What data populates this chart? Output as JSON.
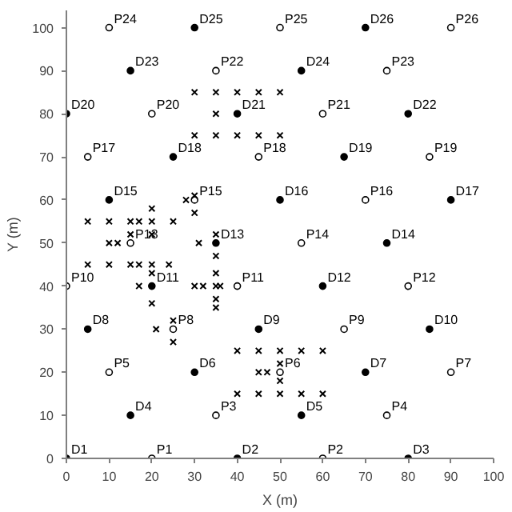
{
  "chart_data": {
    "type": "scatter",
    "xlabel": "X (m)",
    "ylabel": "Y (m)",
    "xlim": [
      0,
      100
    ],
    "ylim": [
      0,
      104
    ],
    "xticks": [
      0,
      10,
      20,
      30,
      40,
      50,
      60,
      70,
      80,
      90,
      100
    ],
    "yticks": [
      0,
      10,
      20,
      30,
      40,
      50,
      60,
      70,
      80,
      90,
      100
    ],
    "grid": false,
    "series": [
      {
        "color": "#000000",
        "marker": "circle",
        "x": [
          0,
          40,
          80,
          15,
          55,
          30,
          70,
          5,
          45,
          85,
          20,
          60,
          35,
          75,
          10,
          50,
          90,
          25,
          65,
          0,
          40,
          80,
          15,
          55,
          30,
          70
        ],
        "values": [
          0,
          0,
          0,
          10,
          10,
          20,
          20,
          30,
          30,
          30,
          40,
          40,
          50,
          50,
          60,
          60,
          60,
          70,
          70,
          80,
          80,
          80,
          90,
          90,
          100,
          100
        ]
      },
      {
        "color": "#ffffff",
        "marker": "circle",
        "x": [
          20,
          60,
          35,
          75,
          10,
          50,
          90,
          25,
          65,
          0,
          40,
          80,
          15,
          55,
          30,
          70,
          5,
          45,
          85,
          20,
          60,
          35,
          75,
          10,
          50,
          90
        ],
        "values": [
          0,
          0,
          10,
          10,
          20,
          20,
          20,
          30,
          30,
          40,
          40,
          40,
          50,
          50,
          60,
          60,
          70,
          70,
          70,
          80,
          80,
          90,
          90,
          100,
          100,
          100
        ]
      },
      {
        "color": "#000000",
        "marker": "cross",
        "x": [
          30,
          35,
          40,
          45,
          50,
          35,
          30,
          35,
          40,
          45,
          50,
          5,
          10,
          15,
          17,
          20,
          25,
          20,
          20,
          10,
          12,
          31,
          15,
          35,
          35,
          5,
          10,
          15,
          17,
          20,
          24,
          17,
          20,
          20,
          30,
          32,
          35,
          36,
          35,
          35,
          35,
          28,
          30,
          30,
          21,
          25,
          25,
          40,
          45,
          50,
          55,
          60,
          40,
          45,
          50,
          55,
          60,
          45,
          47,
          50,
          50
        ],
        "values": [
          85,
          85,
          85,
          85,
          85,
          80,
          75,
          75,
          75,
          75,
          75,
          55,
          55,
          55,
          55,
          55,
          55,
          52,
          58,
          50,
          50,
          50,
          52,
          52,
          47,
          45,
          45,
          45,
          45,
          45,
          45,
          40,
          43,
          36,
          40,
          40,
          40,
          40,
          43,
          37,
          35,
          60,
          61,
          57,
          30,
          32,
          27,
          25,
          25,
          25,
          25,
          25,
          15,
          15,
          15,
          15,
          15,
          20,
          20,
          22,
          18
        ]
      }
    ],
    "annotations": [
      {
        "text": "D1",
        "x": 0,
        "y": 0
      },
      {
        "text": "D2",
        "x": 40,
        "y": 0
      },
      {
        "text": "D3",
        "x": 80,
        "y": 0
      },
      {
        "text": "D4",
        "x": 15,
        "y": 10
      },
      {
        "text": "D5",
        "x": 55,
        "y": 10
      },
      {
        "text": "D6",
        "x": 30,
        "y": 20
      },
      {
        "text": "D7",
        "x": 70,
        "y": 20
      },
      {
        "text": "D8",
        "x": 5,
        "y": 30
      },
      {
        "text": "D9",
        "x": 45,
        "y": 30
      },
      {
        "text": "D10",
        "x": 85,
        "y": 30
      },
      {
        "text": "D11",
        "x": 20,
        "y": 40
      },
      {
        "text": "D12",
        "x": 60,
        "y": 40
      },
      {
        "text": "D13",
        "x": 35,
        "y": 50
      },
      {
        "text": "D14",
        "x": 75,
        "y": 50
      },
      {
        "text": "D15",
        "x": 10,
        "y": 60
      },
      {
        "text": "D16",
        "x": 50,
        "y": 60
      },
      {
        "text": "D17",
        "x": 90,
        "y": 60
      },
      {
        "text": "D18",
        "x": 25,
        "y": 70
      },
      {
        "text": "D19",
        "x": 65,
        "y": 70
      },
      {
        "text": "D20",
        "x": 0,
        "y": 80
      },
      {
        "text": "D21",
        "x": 40,
        "y": 80
      },
      {
        "text": "D22",
        "x": 80,
        "y": 80
      },
      {
        "text": "D23",
        "x": 15,
        "y": 90
      },
      {
        "text": "D24",
        "x": 55,
        "y": 90
      },
      {
        "text": "D25",
        "x": 30,
        "y": 100
      },
      {
        "text": "D26",
        "x": 70,
        "y": 100
      },
      {
        "text": "P1",
        "x": 20,
        "y": 0
      },
      {
        "text": "P2",
        "x": 60,
        "y": 0
      },
      {
        "text": "P3",
        "x": 35,
        "y": 10
      },
      {
        "text": "P4",
        "x": 75,
        "y": 10
      },
      {
        "text": "P5",
        "x": 10,
        "y": 20
      },
      {
        "text": "P6",
        "x": 50,
        "y": 20
      },
      {
        "text": "P7",
        "x": 90,
        "y": 20
      },
      {
        "text": "P8",
        "x": 25,
        "y": 30
      },
      {
        "text": "P9",
        "x": 65,
        "y": 30
      },
      {
        "text": "P10",
        "x": 0,
        "y": 40
      },
      {
        "text": "P11",
        "x": 40,
        "y": 40
      },
      {
        "text": "P12",
        "x": 80,
        "y": 40
      },
      {
        "text": "P13",
        "x": 15,
        "y": 50
      },
      {
        "text": "P14",
        "x": 55,
        "y": 50
      },
      {
        "text": "P15",
        "x": 30,
        "y": 60
      },
      {
        "text": "P16",
        "x": 70,
        "y": 60
      },
      {
        "text": "P17",
        "x": 5,
        "y": 70
      },
      {
        "text": "P18",
        "x": 45,
        "y": 70
      },
      {
        "text": "P19",
        "x": 85,
        "y": 70
      },
      {
        "text": "P20",
        "x": 20,
        "y": 80
      },
      {
        "text": "P21",
        "x": 60,
        "y": 80
      },
      {
        "text": "P22",
        "x": 35,
        "y": 90
      },
      {
        "text": "P23",
        "x": 75,
        "y": 90
      },
      {
        "text": "P24",
        "x": 10,
        "y": 100
      },
      {
        "text": "P25",
        "x": 50,
        "y": 100
      },
      {
        "text": "P26",
        "x": 90,
        "y": 100
      }
    ]
  }
}
